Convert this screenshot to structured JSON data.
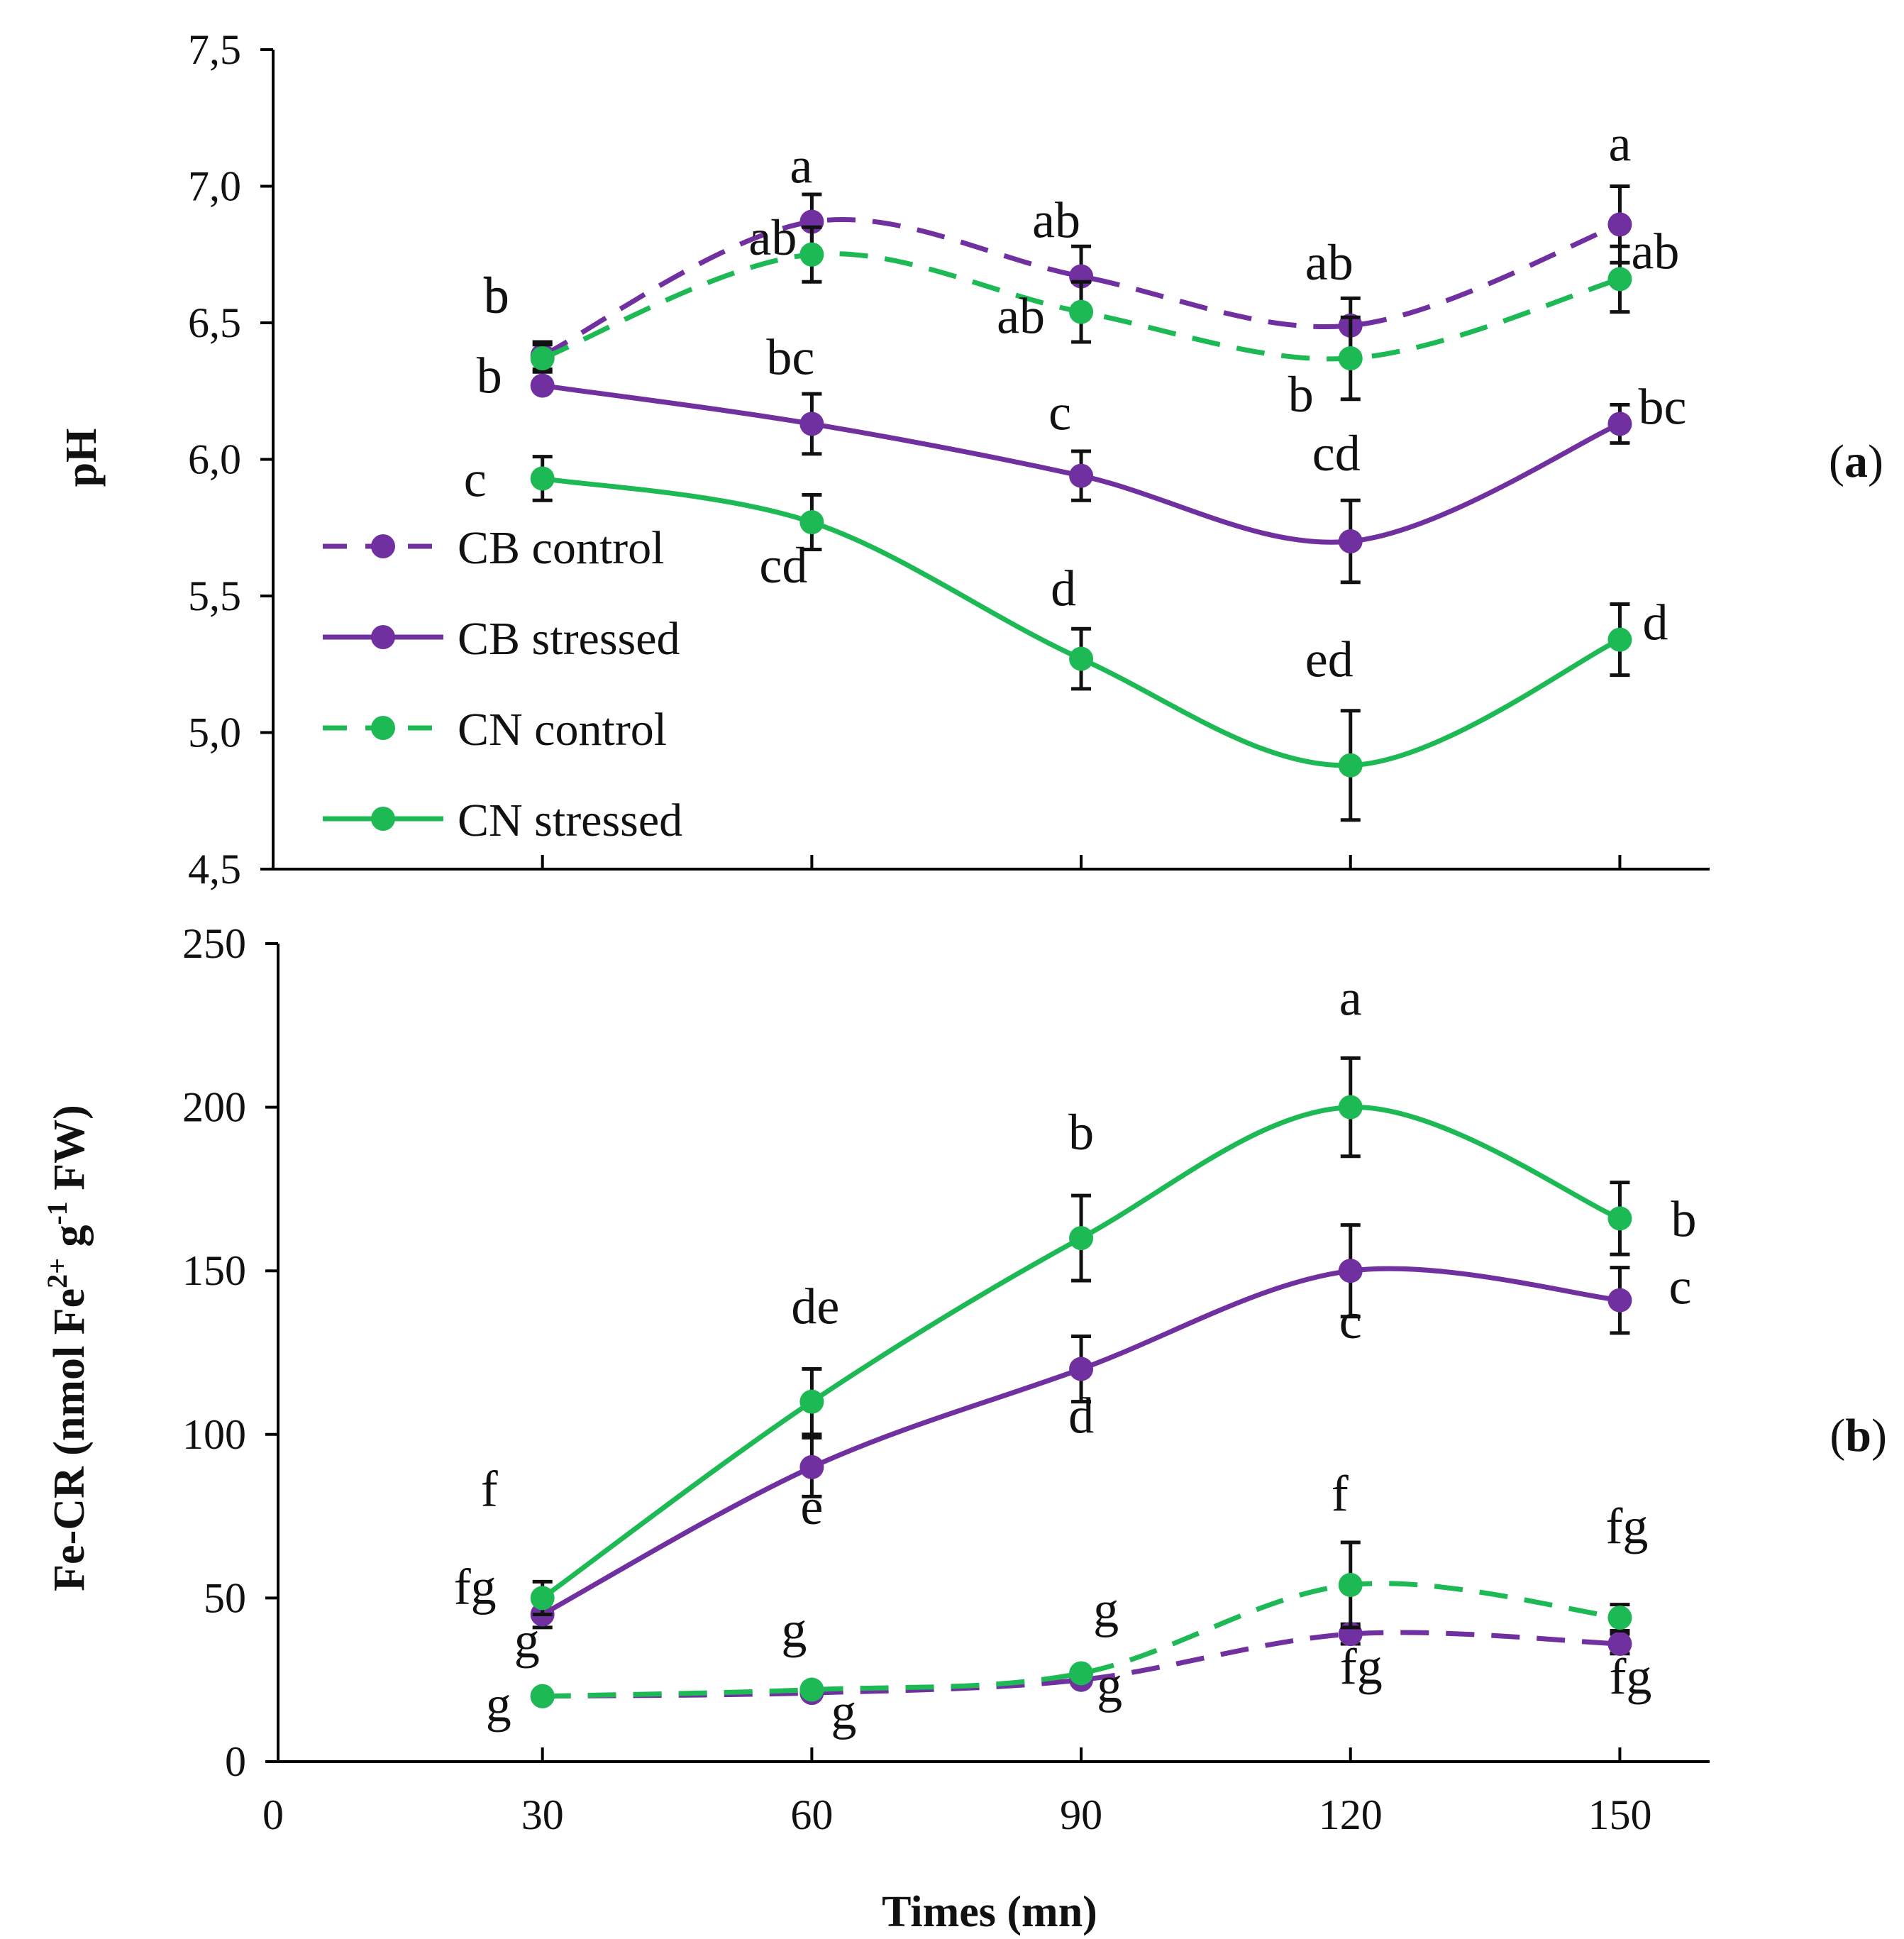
{
  "chart_data": [
    {
      "type": "line",
      "panel_label": "(a)",
      "panel_letter": "a",
      "ylabel": "pH",
      "ylim": [
        4.5,
        7.5
      ],
      "yticks": [
        {
          "value": 4.5,
          "label": "4,5"
        },
        {
          "value": 5.0,
          "label": "5,0"
        },
        {
          "value": 5.5,
          "label": "5,5"
        },
        {
          "value": 6.0,
          "label": "6,0"
        },
        {
          "value": 6.5,
          "label": "6,5"
        },
        {
          "value": 7.0,
          "label": "7,0"
        },
        {
          "value": 7.5,
          "label": "7,5"
        }
      ],
      "x": [
        30,
        60,
        90,
        120,
        150
      ],
      "series": [
        {
          "name": "CB control",
          "color": "#7030A0",
          "dash": true,
          "values": [
            6.38,
            6.87,
            6.67,
            6.49,
            6.86
          ],
          "errors": [
            0.05,
            0.1,
            0.11,
            0.1,
            0.14
          ],
          "letters": [
            "b",
            "a",
            "ab",
            "ab",
            "a"
          ]
        },
        {
          "name": "CB stressed",
          "color": "#7030A0",
          "dash": false,
          "values": [
            6.27,
            6.13,
            5.94,
            5.7,
            6.13
          ],
          "errors": [
            0.0,
            0.11,
            0.09,
            0.15,
            0.07
          ],
          "letters": [
            "b",
            "bc",
            "c",
            "cd",
            "bc"
          ]
        },
        {
          "name": "CN control",
          "color": "#1DB954",
          "dash": true,
          "values": [
            6.37,
            6.75,
            6.54,
            6.37,
            6.66
          ],
          "errors": [
            0.05,
            0.1,
            0.11,
            0.15,
            0.12
          ],
          "letters": [
            "b",
            "ab",
            "ab",
            "b",
            "ab"
          ]
        },
        {
          "name": "CN stressed",
          "color": "#1DB954",
          "dash": false,
          "values": [
            5.93,
            5.77,
            5.27,
            4.88,
            5.34
          ],
          "errors": [
            0.08,
            0.1,
            0.11,
            0.2,
            0.13
          ],
          "letters": [
            "c",
            "cd",
            "d",
            "ed",
            "d"
          ]
        }
      ]
    },
    {
      "type": "line",
      "panel_label": "(b)",
      "panel_letter": "b",
      "ylabel": "Fe-CR (nmol Fe2+ g-1 FW)",
      "ylabel_parts": {
        "pre": "Fe-CR (nmol Fe",
        "sup1": "2+",
        "mid": " g",
        "sup2": "-1",
        "post": " FW)"
      },
      "ylim": [
        0,
        250
      ],
      "yticks": [
        {
          "value": 0,
          "label": "0"
        },
        {
          "value": 50,
          "label": "50"
        },
        {
          "value": 100,
          "label": "100"
        },
        {
          "value": 150,
          "label": "150"
        },
        {
          "value": 200,
          "label": "200"
        },
        {
          "value": 250,
          "label": "250"
        }
      ],
      "xlabel": "Times (mn)",
      "xlim": [
        0,
        160
      ],
      "xticks": [
        {
          "value": 0,
          "label": "0"
        },
        {
          "value": 30,
          "label": "30"
        },
        {
          "value": 60,
          "label": "60"
        },
        {
          "value": 90,
          "label": "90"
        },
        {
          "value": 120,
          "label": "120"
        },
        {
          "value": 150,
          "label": "150"
        }
      ],
      "x": [
        30,
        60,
        90,
        120,
        150
      ],
      "series": [
        {
          "name": "CB control",
          "color": "#7030A0",
          "dash": true,
          "values": [
            20,
            21,
            25,
            39,
            36
          ],
          "errors": [
            0,
            0,
            0,
            3,
            3
          ],
          "letters": [
            "g",
            "g",
            "g",
            "fg",
            "fg"
          ]
        },
        {
          "name": "CB stressed",
          "color": "#7030A0",
          "dash": false,
          "values": [
            45,
            90,
            120,
            150,
            141
          ],
          "errors": [
            4,
            9,
            10,
            14,
            10
          ],
          "letters": [
            "fg",
            "e",
            "d",
            "c",
            "c"
          ]
        },
        {
          "name": "CN control",
          "color": "#1DB954",
          "dash": true,
          "values": [
            20,
            22,
            27,
            54,
            44
          ],
          "errors": [
            0,
            0,
            0,
            13,
            4
          ],
          "letters": [
            "g",
            "g",
            "g",
            "f",
            "fg"
          ]
        },
        {
          "name": "CN stressed",
          "color": "#1DB954",
          "dash": false,
          "values": [
            50,
            110,
            160,
            200,
            166
          ],
          "errors": [
            5,
            10,
            13,
            15,
            11
          ],
          "letters": [
            "f",
            "de",
            "b",
            "a",
            "b"
          ]
        }
      ]
    }
  ],
  "legend": [
    {
      "name": "CB control",
      "color": "#7030A0",
      "dash": true
    },
    {
      "name": "CB stressed",
      "color": "#7030A0",
      "dash": false
    },
    {
      "name": "CN control",
      "color": "#1DB954",
      "dash": true
    },
    {
      "name": "CN stressed",
      "color": "#1DB954",
      "dash": false
    }
  ]
}
